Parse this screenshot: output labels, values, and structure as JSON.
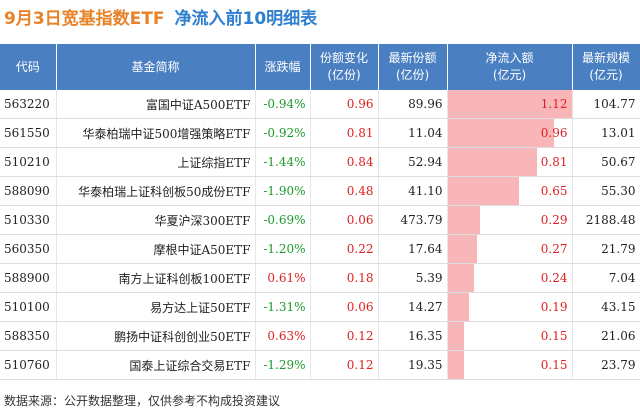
{
  "header": {
    "title_date": "9月3日宽基指数ETF",
    "title_rest": "净流入前10明细表"
  },
  "table": {
    "columns": [
      [
        "代码"
      ],
      [
        "基金简称"
      ],
      [
        "涨跌幅"
      ],
      [
        "份额变化",
        "(亿份)"
      ],
      [
        "最新份额",
        "(亿份)"
      ],
      [
        "净流入额",
        "(亿元)"
      ],
      [
        "最新规模",
        "(亿元)"
      ]
    ],
    "rows": [
      [
        "563220",
        "富国中证A500ETF",
        "-0.94%",
        "0.96",
        "89.96",
        1.12,
        "104.77"
      ],
      [
        "561550",
        "华泰柏瑞中证500增强策略ETF",
        "-0.92%",
        "0.81",
        "11.04",
        0.96,
        "13.01"
      ],
      [
        "510210",
        "上证综指ETF",
        "-1.44%",
        "0.84",
        "52.94",
        0.81,
        "50.67"
      ],
      [
        "588090",
        "华泰柏瑞上证科创板50成份ETF",
        "-1.90%",
        "0.48",
        "41.10",
        0.65,
        "55.30"
      ],
      [
        "510330",
        "华夏沪深300ETF",
        "-0.69%",
        "0.06",
        "473.79",
        0.29,
        "2188.48"
      ],
      [
        "560350",
        "摩根中证A50ETF",
        "-1.20%",
        "0.22",
        "17.64",
        0.27,
        "21.79"
      ],
      [
        "588900",
        "南方上证科创板100ETF",
        "0.61%",
        "0.18",
        "5.39",
        0.24,
        "7.04"
      ],
      [
        "510100",
        "易方达上证50ETF",
        "-1.31%",
        "0.06",
        "14.27",
        0.19,
        "43.15"
      ],
      [
        "588350",
        "鹏扬中证科创创业50ETF",
        "0.63%",
        "0.12",
        "16.35",
        0.15,
        "21.06"
      ],
      [
        "510760",
        "国泰上证综合交易ETF",
        "-1.29%",
        "0.12",
        "19.35",
        0.15,
        "23.79"
      ]
    ]
  },
  "footer": "数据来源：公开数据整理，仅供参考不构成投资建议"
}
